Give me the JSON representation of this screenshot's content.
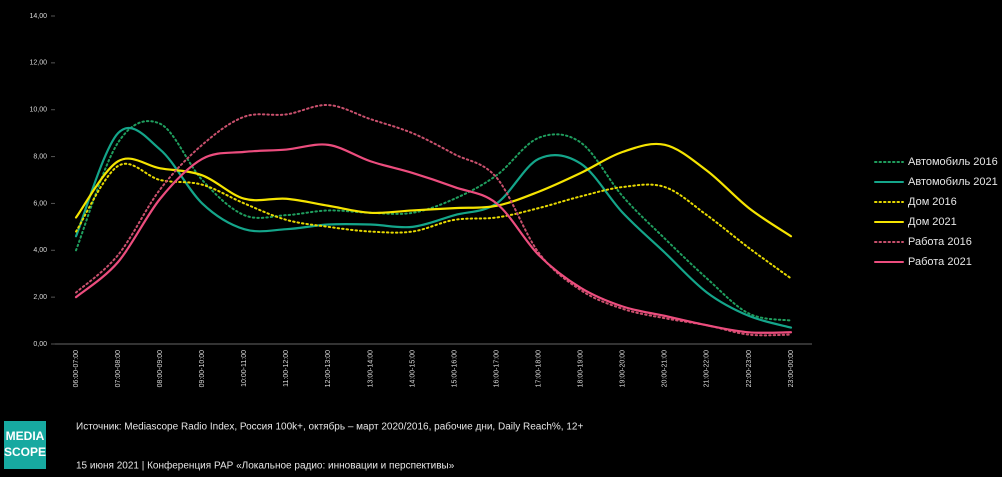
{
  "chart_data": {
    "type": "line",
    "categories": [
      "06:00-07:00",
      "07:00-08:00",
      "08:00-09:00",
      "09:00-10:00",
      "10:00-11:00",
      "11:00-12:00",
      "12:00-13:00",
      "13:00-14:00",
      "14:00-15:00",
      "15:00-16:00",
      "16:00-17:00",
      "17:00-18:00",
      "18:00-19:00",
      "19:00-20:00",
      "20:00-21:00",
      "21:00-22:00",
      "22:00-23:00",
      "23:00-00:00"
    ],
    "series": [
      {
        "name": "Автомобиль 2016",
        "color": "#1f9e5e",
        "dash": "dotted",
        "values": [
          4.0,
          8.6,
          9.4,
          7.0,
          5.5,
          5.5,
          5.7,
          5.6,
          5.6,
          6.2,
          7.2,
          8.8,
          8.6,
          6.3,
          4.5,
          2.8,
          1.3,
          1.0
        ]
      },
      {
        "name": "Автомобиль 2021",
        "color": "#14a58a",
        "dash": "solid",
        "values": [
          4.6,
          9.0,
          8.3,
          6.0,
          4.9,
          4.9,
          5.1,
          5.1,
          5.0,
          5.5,
          6.0,
          7.9,
          7.7,
          5.6,
          3.9,
          2.2,
          1.2,
          0.7
        ]
      },
      {
        "name": "Дом 2016",
        "color": "#e6d800",
        "dash": "dotted",
        "values": [
          4.8,
          7.6,
          7.0,
          6.8,
          6.0,
          5.3,
          5.0,
          4.8,
          4.8,
          5.3,
          5.4,
          5.8,
          6.3,
          6.7,
          6.7,
          5.5,
          4.1,
          2.8
        ]
      },
      {
        "name": "Дом 2021",
        "color": "#f5e400",
        "dash": "solid",
        "values": [
          5.4,
          7.8,
          7.5,
          7.2,
          6.2,
          6.2,
          5.9,
          5.6,
          5.7,
          5.8,
          5.9,
          6.5,
          7.3,
          8.2,
          8.5,
          7.4,
          5.8,
          4.6
        ]
      },
      {
        "name": "Работа 2016",
        "color": "#c9506d",
        "dash": "dotted",
        "values": [
          2.2,
          3.8,
          6.6,
          8.5,
          9.7,
          9.8,
          10.2,
          9.6,
          9.0,
          8.1,
          7.1,
          3.9,
          2.3,
          1.5,
          1.1,
          0.8,
          0.4,
          0.4
        ]
      },
      {
        "name": "Работа 2021",
        "color": "#ec4d7e",
        "dash": "solid",
        "values": [
          2.0,
          3.5,
          6.2,
          7.9,
          8.2,
          8.3,
          8.5,
          7.8,
          7.3,
          6.7,
          6.0,
          3.8,
          2.4,
          1.6,
          1.2,
          0.8,
          0.5,
          0.5
        ]
      }
    ],
    "ylim": [
      0,
      14
    ],
    "yticks": [
      {
        "value": 0,
        "label": "0,00"
      },
      {
        "value": 2,
        "label": "2,00"
      },
      {
        "value": 4,
        "label": "4,00"
      },
      {
        "value": 6,
        "label": "6,00"
      },
      {
        "value": 8,
        "label": "8,00"
      },
      {
        "value": 10,
        "label": "10,00"
      },
      {
        "value": 12,
        "label": "12,00"
      },
      {
        "value": 14,
        "label": "14,00"
      }
    ],
    "grid": false,
    "legend": "right",
    "smooth": true
  },
  "source": "Источник: Mediascope Radio Index, Россия 100k+, октябрь – март 2020/2016, рабочие дни, Daily Reach%, 12+",
  "footer": "15 июня 2021 | Конференция РАР «Локальное радио: инновации и перспективы»",
  "logo": [
    "MEDIA",
    "SCOPE"
  ]
}
